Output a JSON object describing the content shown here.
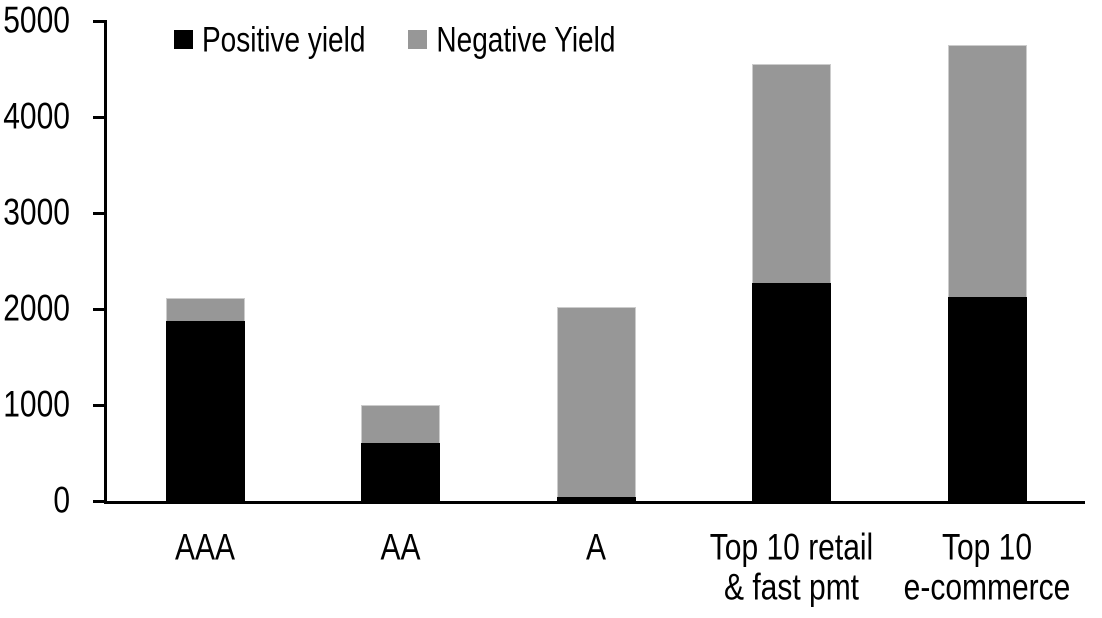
{
  "chart_data": {
    "type": "bar",
    "stacked": true,
    "title": "",
    "xlabel": "",
    "ylabel": "",
    "categories": [
      "AAA",
      "AA",
      "A",
      "Top 10 retail\n& fast pmt",
      "Top 10\ne-commerce"
    ],
    "series": [
      {
        "name": "Positive yield",
        "color": "#000000",
        "values": [
          1880,
          600,
          40,
          2270,
          2130
        ]
      },
      {
        "name": "Negative Yield",
        "color": "#979797",
        "values": [
          230,
          400,
          1980,
          2280,
          2620
        ]
      }
    ],
    "totals": [
      2110,
      1000,
      2020,
      4550,
      4750
    ],
    "ylim": [
      0,
      5000
    ],
    "yticks": [
      0,
      1000,
      2000,
      3000,
      4000,
      5000
    ],
    "grid": false,
    "legend_position": "top",
    "axis_color": "#000000",
    "background_color": "#ffffff"
  }
}
